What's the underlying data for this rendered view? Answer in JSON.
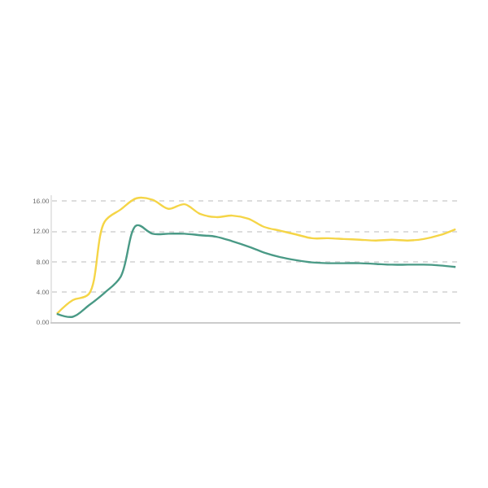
{
  "chart_data": {
    "type": "line",
    "categories": [
      null,
      null,
      null,
      null,
      null,
      null,
      null,
      null,
      null,
      null,
      null,
      null,
      null,
      null,
      null,
      null,
      null,
      null,
      null,
      null,
      null,
      null,
      null,
      null,
      null,
      null
    ],
    "series": [
      {
        "color": "#f5d547",
        "values": [
          1.1,
          2.9,
          3.7,
          13.3,
          14.9,
          16.4,
          16.2,
          15.0,
          15.6,
          14.3,
          13.9,
          14.1,
          13.7,
          12.6,
          12.1,
          11.6,
          11.1,
          11.1,
          11.0,
          10.9,
          10.8,
          10.9,
          10.8,
          11.0,
          11.5,
          12.3
        ]
      },
      {
        "color": "#4a9a86",
        "values": [
          1.1,
          0.7,
          2.2,
          3.9,
          6.0,
          12.8,
          11.7,
          11.7,
          11.7,
          11.5,
          11.3,
          10.7,
          10.0,
          9.2,
          8.6,
          8.2,
          7.9,
          7.8,
          7.8,
          7.8,
          7.7,
          7.6,
          7.6,
          7.6,
          7.5,
          7.3
        ]
      }
    ],
    "ylim": [
      0,
      16.8
    ],
    "yticks": [
      {
        "value": 0,
        "label": "0.00"
      },
      {
        "value": 4,
        "label": "4.00"
      },
      {
        "value": 8,
        "label": "8.00"
      },
      {
        "value": 12,
        "label": "12.00"
      },
      {
        "value": 16,
        "label": "16.00"
      }
    ],
    "grid": "y",
    "marker": "none",
    "line_style": "solid"
  }
}
